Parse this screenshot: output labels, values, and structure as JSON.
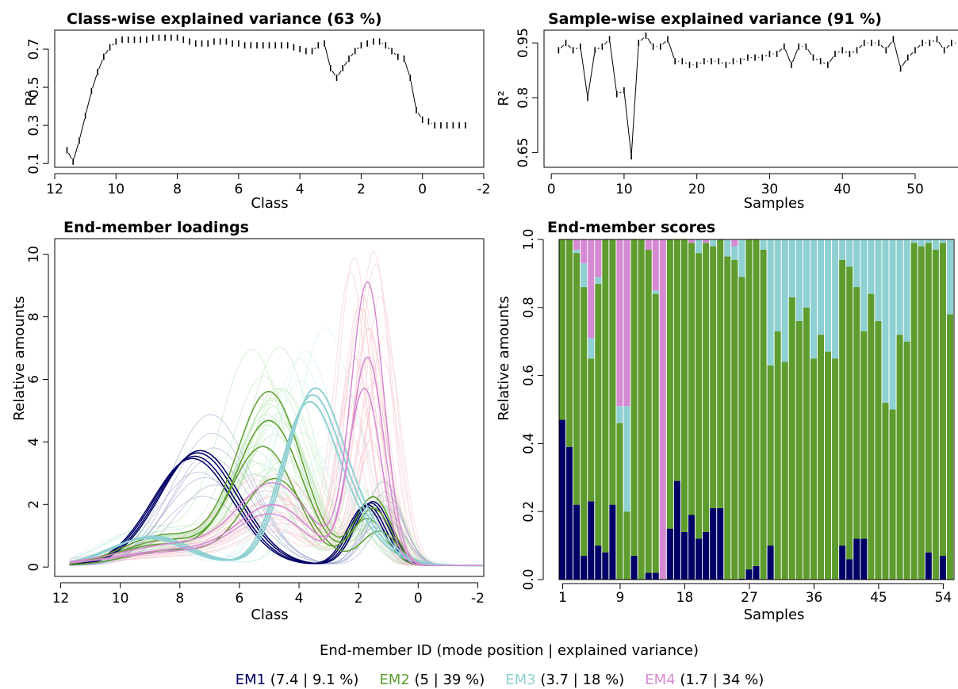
{
  "colors": {
    "em1": "#000066",
    "em2": "#5e9c2e",
    "em3": "#8fd0d2",
    "em4": "#d58ad1",
    "em1_light": "#9aa0c8",
    "em2_light": "#b7e6b0",
    "em3_light": "#c8ecee",
    "em4_light": "#f4c4cc"
  },
  "legend": {
    "title": "End-member ID (mode position | explained variance)",
    "items": [
      {
        "name": "EM1",
        "detail": " (7.4 | 9.1 %)"
      },
      {
        "name": "EM2",
        "detail": " (5 | 39 %)"
      },
      {
        "name": "EM3",
        "detail": " (3.7 | 18 %)"
      },
      {
        "name": "EM4",
        "detail": " (1.7 | 34 %)"
      }
    ]
  },
  "chart_data": [
    {
      "id": "class_variance",
      "type": "line",
      "title": "Class-wise explained variance (63 %)",
      "xlabel": "Class",
      "ylabel": "R²",
      "xlim": [
        12,
        -2
      ],
      "ylim": [
        0.08,
        0.8
      ],
      "xticks": [
        12,
        10,
        8,
        6,
        4,
        2,
        0,
        -2
      ],
      "yticks": [
        0.1,
        0.3,
        0.5,
        0.7
      ],
      "x": [
        11.6,
        11.4,
        11.2,
        11.0,
        10.8,
        10.6,
        10.4,
        10.2,
        10.0,
        9.8,
        9.6,
        9.4,
        9.2,
        9.0,
        8.8,
        8.6,
        8.4,
        8.2,
        8.0,
        7.8,
        7.6,
        7.4,
        7.2,
        7.0,
        6.8,
        6.6,
        6.4,
        6.2,
        6.0,
        5.8,
        5.6,
        5.4,
        5.2,
        5.0,
        4.8,
        4.6,
        4.4,
        4.2,
        4.0,
        3.8,
        3.6,
        3.4,
        3.2,
        3.0,
        2.8,
        2.6,
        2.4,
        2.2,
        2.0,
        1.8,
        1.6,
        1.4,
        1.2,
        1.0,
        0.8,
        0.6,
        0.4,
        0.2,
        0.0,
        -0.2,
        -0.4,
        -0.6,
        -0.8,
        -1.0,
        -1.2,
        -1.4
      ],
      "y": [
        0.17,
        0.11,
        0.22,
        0.35,
        0.48,
        0.58,
        0.66,
        0.71,
        0.74,
        0.75,
        0.75,
        0.75,
        0.75,
        0.75,
        0.76,
        0.76,
        0.76,
        0.76,
        0.76,
        0.75,
        0.74,
        0.73,
        0.73,
        0.73,
        0.74,
        0.74,
        0.74,
        0.73,
        0.73,
        0.72,
        0.72,
        0.72,
        0.72,
        0.72,
        0.72,
        0.72,
        0.72,
        0.71,
        0.7,
        0.69,
        0.69,
        0.72,
        0.73,
        0.6,
        0.55,
        0.6,
        0.65,
        0.69,
        0.72,
        0.73,
        0.74,
        0.74,
        0.72,
        0.69,
        0.66,
        0.65,
        0.55,
        0.38,
        0.33,
        0.32,
        0.3,
        0.3,
        0.3,
        0.3,
        0.3,
        0.3
      ]
    },
    {
      "id": "sample_variance",
      "type": "line",
      "title": "Sample-wise explained variance (91 %)",
      "xlabel": "Samples",
      "ylabel": "R²",
      "xlim": [
        -1,
        56
      ],
      "ylim": [
        0.61,
        0.985
      ],
      "xticks": [
        0,
        10,
        20,
        30,
        40,
        50
      ],
      "yticks": [
        0.65,
        0.8,
        0.95
      ],
      "x": [
        1,
        2,
        3,
        4,
        5,
        6,
        7,
        8,
        9,
        10,
        11,
        12,
        13,
        14,
        15,
        16,
        17,
        18,
        19,
        20,
        21,
        22,
        23,
        24,
        25,
        26,
        27,
        28,
        29,
        30,
        31,
        32,
        33,
        34,
        35,
        36,
        37,
        38,
        39,
        40,
        41,
        42,
        43,
        44,
        45,
        46,
        47,
        48,
        49,
        50,
        51,
        52,
        53,
        54,
        55,
        56
      ],
      "y": [
        0.93,
        0.95,
        0.93,
        0.94,
        0.8,
        0.93,
        0.94,
        0.96,
        0.81,
        0.82,
        0.64,
        0.95,
        0.97,
        0.94,
        0.94,
        0.96,
        0.9,
        0.9,
        0.89,
        0.89,
        0.9,
        0.9,
        0.9,
        0.89,
        0.9,
        0.9,
        0.91,
        0.91,
        0.91,
        0.92,
        0.92,
        0.94,
        0.89,
        0.94,
        0.94,
        0.91,
        0.9,
        0.89,
        0.92,
        0.93,
        0.92,
        0.93,
        0.95,
        0.95,
        0.95,
        0.93,
        0.96,
        0.88,
        0.91,
        0.93,
        0.95,
        0.95,
        0.96,
        0.93,
        0.95,
        0.95
      ]
    },
    {
      "id": "loadings",
      "type": "line",
      "title": "End-member loadings",
      "xlabel": "Class",
      "ylabel": "Relative amounts",
      "xlim": [
        12.2,
        -2.2
      ],
      "ylim": [
        -0.3,
        10.5
      ],
      "xticks": [
        12,
        10,
        8,
        6,
        4,
        2,
        0,
        -2
      ],
      "yticks": [
        0,
        2,
        4,
        6,
        8,
        10
      ],
      "series": [
        {
          "name": "EM1",
          "color_key": "em1",
          "width": 1.5,
          "components": [
            {
              "center": 7.4,
              "sigma": 1.35,
              "amp": 3.6
            },
            {
              "center": 1.6,
              "sigma": 0.6,
              "amp": 2.0
            }
          ],
          "variants": [
            {
              "amp_scale": 1.0,
              "shift": 0
            },
            {
              "amp_scale": 0.97,
              "shift": 0.1
            },
            {
              "amp_scale": 1.02,
              "shift": -0.08
            },
            {
              "amp_scale": 0.95,
              "shift": 0.18
            }
          ]
        },
        {
          "name": "EM2",
          "color_key": "em2",
          "width": 1.5,
          "components": [
            {
              "center": 5.0,
              "sigma": 1.1,
              "amp": 4.6
            },
            {
              "center": 8.5,
              "sigma": 1.4,
              "amp": 0.8
            },
            {
              "center": 1.5,
              "sigma": 0.6,
              "amp": 1.8
            }
          ],
          "variants": [
            {
              "amp_scale": 1.0,
              "shift": 0
            },
            {
              "amp_scale": 1.2,
              "shift": 0
            },
            {
              "amp_scale": 0.82,
              "shift": 0.2
            },
            {
              "amp_scale": 0.6,
              "shift": -0.2
            }
          ]
        },
        {
          "name": "EM3",
          "color_key": "em3",
          "width": 2.0,
          "components": [
            {
              "center": 3.7,
              "sigma": 0.9,
              "amp": 4.5
            },
            {
              "center": 2.5,
              "sigma": 1.1,
              "amp": 1.6
            },
            {
              "center": 9.0,
              "sigma": 1.3,
              "amp": 0.9
            }
          ],
          "variants": [
            {
              "amp_scale": 1.0,
              "shift": 0
            },
            {
              "amp_scale": 1.04,
              "shift": -0.1
            },
            {
              "amp_scale": 0.96,
              "shift": 0.1
            }
          ]
        },
        {
          "name": "EM4",
          "color_key": "em4",
          "width": 1.5,
          "components": [
            {
              "center": 1.7,
              "sigma": 0.55,
              "amp": 6.6
            },
            {
              "center": 4.8,
              "sigma": 1.2,
              "amp": 1.8
            },
            {
              "center": 8.0,
              "sigma": 2.0,
              "amp": 0.5
            }
          ],
          "variants": [
            {
              "amp_scale": 1.0,
              "shift": 0
            },
            {
              "amp_scale": 1.36,
              "shift": 0
            },
            {
              "amp_scale": 0.85,
              "shift": 0.1
            }
          ]
        }
      ]
    },
    {
      "id": "scores",
      "type": "bar",
      "stacked": true,
      "title": "End-member scores",
      "xlabel": "Samples",
      "ylabel": "Relative amounts",
      "ylim": [
        0,
        1
      ],
      "yticks": [
        "0.0",
        "0.2",
        "0.4",
        "0.6",
        "0.8",
        "1.0"
      ],
      "xtick_labels": [
        "1",
        "9",
        "18",
        "27",
        "36",
        "45",
        "54"
      ],
      "stack_order": [
        "EM1",
        "EM2",
        "EM3",
        "EM4"
      ],
      "categories": [
        1,
        2,
        3,
        4,
        5,
        6,
        7,
        8,
        9,
        10,
        11,
        12,
        13,
        14,
        15,
        16,
        17,
        18,
        19,
        20,
        21,
        22,
        23,
        24,
        25,
        26,
        27,
        28,
        29,
        30,
        31,
        32,
        33,
        34,
        35,
        36,
        37,
        38,
        39,
        40,
        41,
        42,
        43,
        44,
        45,
        46,
        47,
        48,
        49,
        50,
        51,
        52,
        53,
        54,
        55
      ],
      "series": [
        {
          "name": "EM1",
          "values": [
            0.47,
            0.39,
            0.22,
            0.07,
            0.23,
            0.1,
            0.08,
            0.22,
            0,
            0,
            0.07,
            0,
            0.02,
            0.02,
            0,
            0.15,
            0.29,
            0.14,
            0.19,
            0.12,
            0.14,
            0.21,
            0.21,
            0,
            0,
            0.003,
            0.03,
            0.04,
            0,
            0.1,
            0,
            0,
            0,
            0,
            0,
            0,
            0,
            0,
            0,
            0.1,
            0.06,
            0.12,
            0.12,
            0,
            0,
            0,
            0,
            0,
            0,
            0,
            0,
            0.08,
            0,
            0.07,
            0
          ]
        },
        {
          "name": "EM2",
          "values": [
            0.53,
            0.61,
            0.74,
            0.79,
            0.42,
            0.77,
            0.92,
            0.78,
            0.46,
            0.2,
            0.93,
            1.0,
            0.95,
            0.82,
            0,
            0.85,
            0.71,
            0.86,
            0.8,
            0.84,
            0.85,
            0.77,
            0.79,
            0.95,
            0.94,
            0.887,
            0.97,
            0.96,
            0.97,
            0.53,
            0.73,
            0.64,
            0.83,
            0.76,
            0.8,
            0.65,
            0.72,
            0.67,
            0.65,
            0.84,
            0.86,
            0.74,
            0.61,
            0.84,
            0.76,
            0.52,
            0.5,
            0.72,
            0.7,
            0.99,
            0.98,
            0.91,
            0.97,
            0.92,
            0.78
          ]
        },
        {
          "name": "EM3",
          "values": [
            0,
            0,
            0.01,
            0.07,
            0.06,
            0.02,
            0,
            0,
            0.05,
            0.31,
            0,
            0,
            0,
            0.01,
            0,
            0,
            0,
            0,
            0,
            0.04,
            0,
            0.02,
            0,
            0.05,
            0.04,
            0.11,
            0,
            0,
            0.03,
            0.37,
            0.27,
            0.36,
            0.17,
            0.24,
            0.2,
            0.35,
            0.28,
            0.33,
            0.35,
            0.06,
            0.08,
            0.14,
            0.27,
            0.16,
            0.24,
            0.48,
            0.5,
            0.28,
            0.3,
            0.01,
            0.02,
            0.01,
            0.03,
            0.01,
            0.22
          ]
        },
        {
          "name": "EM4",
          "values": [
            0,
            0,
            0.03,
            0.07,
            0.29,
            0.11,
            0,
            0,
            0.49,
            0.49,
            0,
            0,
            0.03,
            0.15,
            1.0,
            0,
            0,
            0,
            0.01,
            0,
            0.01,
            0,
            0,
            0,
            0.02,
            0,
            0,
            0,
            0,
            0,
            0,
            0,
            0,
            0,
            0,
            0,
            0,
            0,
            0,
            0,
            0,
            0,
            0,
            0,
            0,
            0,
            0,
            0,
            0,
            0,
            0,
            0,
            0,
            0,
            0
          ]
        }
      ]
    }
  ]
}
